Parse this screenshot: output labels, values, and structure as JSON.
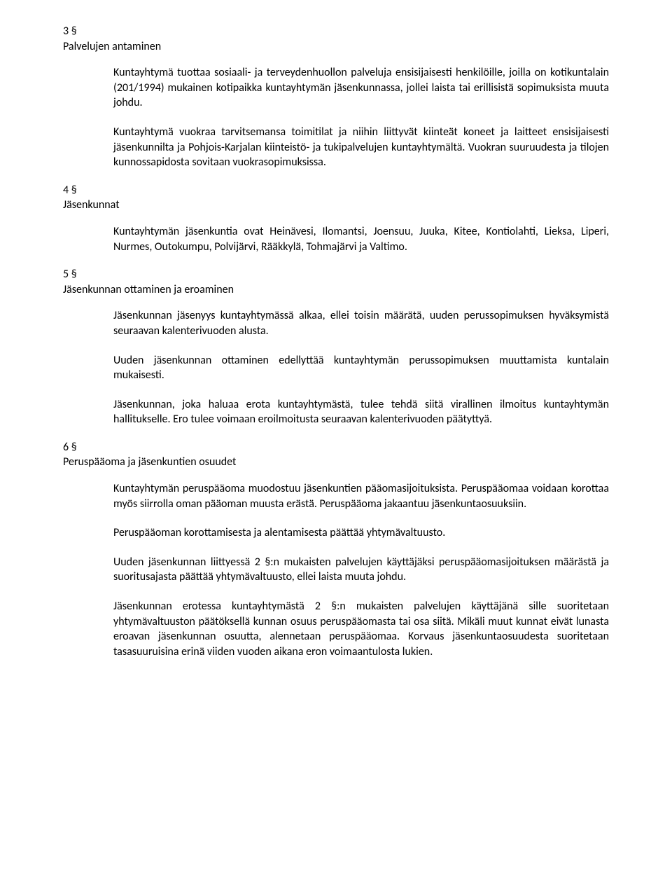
{
  "sections": [
    {
      "num": "3 §",
      "title": "Palvelujen antaminen",
      "paras": [
        "Kuntayhtymä tuottaa sosiaali- ja terveydenhuollon palveluja ensisijaisesti henkilöille, joilla on kotikuntalain (201/1994) mukainen kotipaikka kuntayhtymän jäsenkunnassa, jollei laista tai erillisistä sopimuksista muuta johdu.",
        "Kuntayhtymä vuokraa tarvitsemansa toimitilat ja niihin liittyvät kiinteät koneet ja laitteet ensisijaisesti jäsenkunnilta ja Pohjois-Karjalan kiinteistö- ja tukipalvelujen kuntayhtymältä. Vuokran suuruudesta ja tilojen kunnossapidosta sovitaan vuokrasopimuksissa."
      ]
    },
    {
      "num": "4 §",
      "title": "Jäsenkunnat",
      "paras": [
        "Kuntayhtymän jäsenkuntia ovat Heinävesi, Ilomantsi, Joensuu, Juuka, Kitee, Kontiolahti, Lieksa, Liperi, Nurmes, Outokumpu, Polvijärvi, Rääkkylä, Tohmajärvi ja Valtimo."
      ]
    },
    {
      "num": "5 §",
      "title": "Jäsenkunnan ottaminen ja eroaminen",
      "paras": [
        "Jäsenkunnan jäsenyys kuntayhtymässä alkaa, ellei toisin määrätä, uuden perussopimuksen hyväksymistä seuraavan kalenterivuoden alusta.",
        "Uuden jäsenkunnan ottaminen edellyttää kuntayhtymän perussopimuksen muuttamista kuntalain mukaisesti.",
        "Jäsenkunnan, joka haluaa erota kuntayhtymästä, tulee tehdä siitä virallinen ilmoitus kuntayhtymän hallitukselle. Ero tulee voimaan eroilmoitusta seuraavan kalenterivuoden päätyttyä."
      ]
    },
    {
      "num": "6 §",
      "title": "Peruspääoma ja jäsenkuntien osuudet",
      "paras": [
        "Kuntayhtymän peruspääoma muodostuu jäsenkuntien pääomasijoituksista. Peruspääomaa voidaan korottaa myös siirrolla oman pääoman muusta erästä. Peruspääoma jakaantuu jäsenkuntaosuuksiin.",
        "Peruspääoman korottamisesta ja alentamisesta päättää yhtymävaltuusto.",
        "Uuden jäsenkunnan liittyessä 2 §:n mukaisten palvelujen käyttäjäksi peruspääomasijoituksen määrästä ja suoritusajasta päättää yhtymävaltuusto, ellei laista muuta johdu.",
        "Jäsenkunnan erotessa kuntayhtymästä 2 §:n mukaisten palvelujen käyttäjänä sille suoritetaan yhtymävaltuuston päätöksellä kunnan osuus peruspääomasta tai osa siitä. Mikäli muut kunnat eivät lunasta eroavan jäsenkunnan osuutta, alennetaan peruspääomaa. Korvaus jäsenkuntaosuudesta suoritetaan tasasuuruisina erinä viiden vuoden aikana eron voimaantulosta lukien."
      ]
    }
  ]
}
